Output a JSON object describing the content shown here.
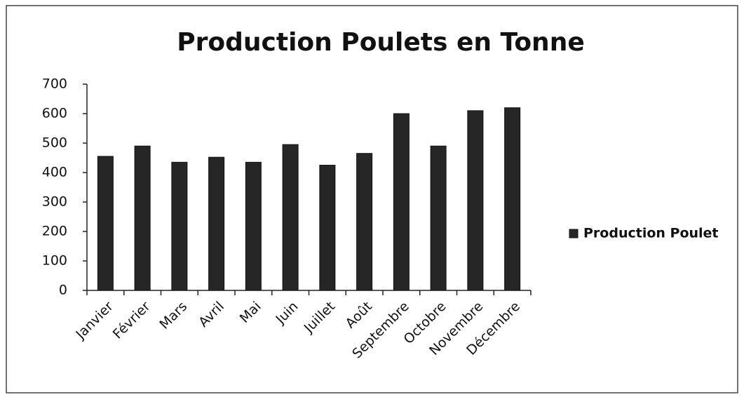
{
  "chart_data": {
    "type": "bar",
    "title": "Production Poulets en Tonne",
    "categories": [
      "Janvier",
      "Février",
      "Mars",
      "Avril",
      "Mai",
      "Juin",
      "Juillet",
      "Août",
      "Septembre",
      "Octobre",
      "Novembre",
      "Décembre"
    ],
    "series": [
      {
        "name": "Production Poulet",
        "color": "#262626",
        "values": [
          455,
          490,
          435,
          452,
          435,
          495,
          425,
          465,
          600,
          490,
          610,
          620
        ]
      }
    ],
    "ylim": [
      0,
      700
    ],
    "yticks": [
      0,
      100,
      200,
      300,
      400,
      500,
      600,
      700
    ],
    "grid": false,
    "legend": "right"
  }
}
